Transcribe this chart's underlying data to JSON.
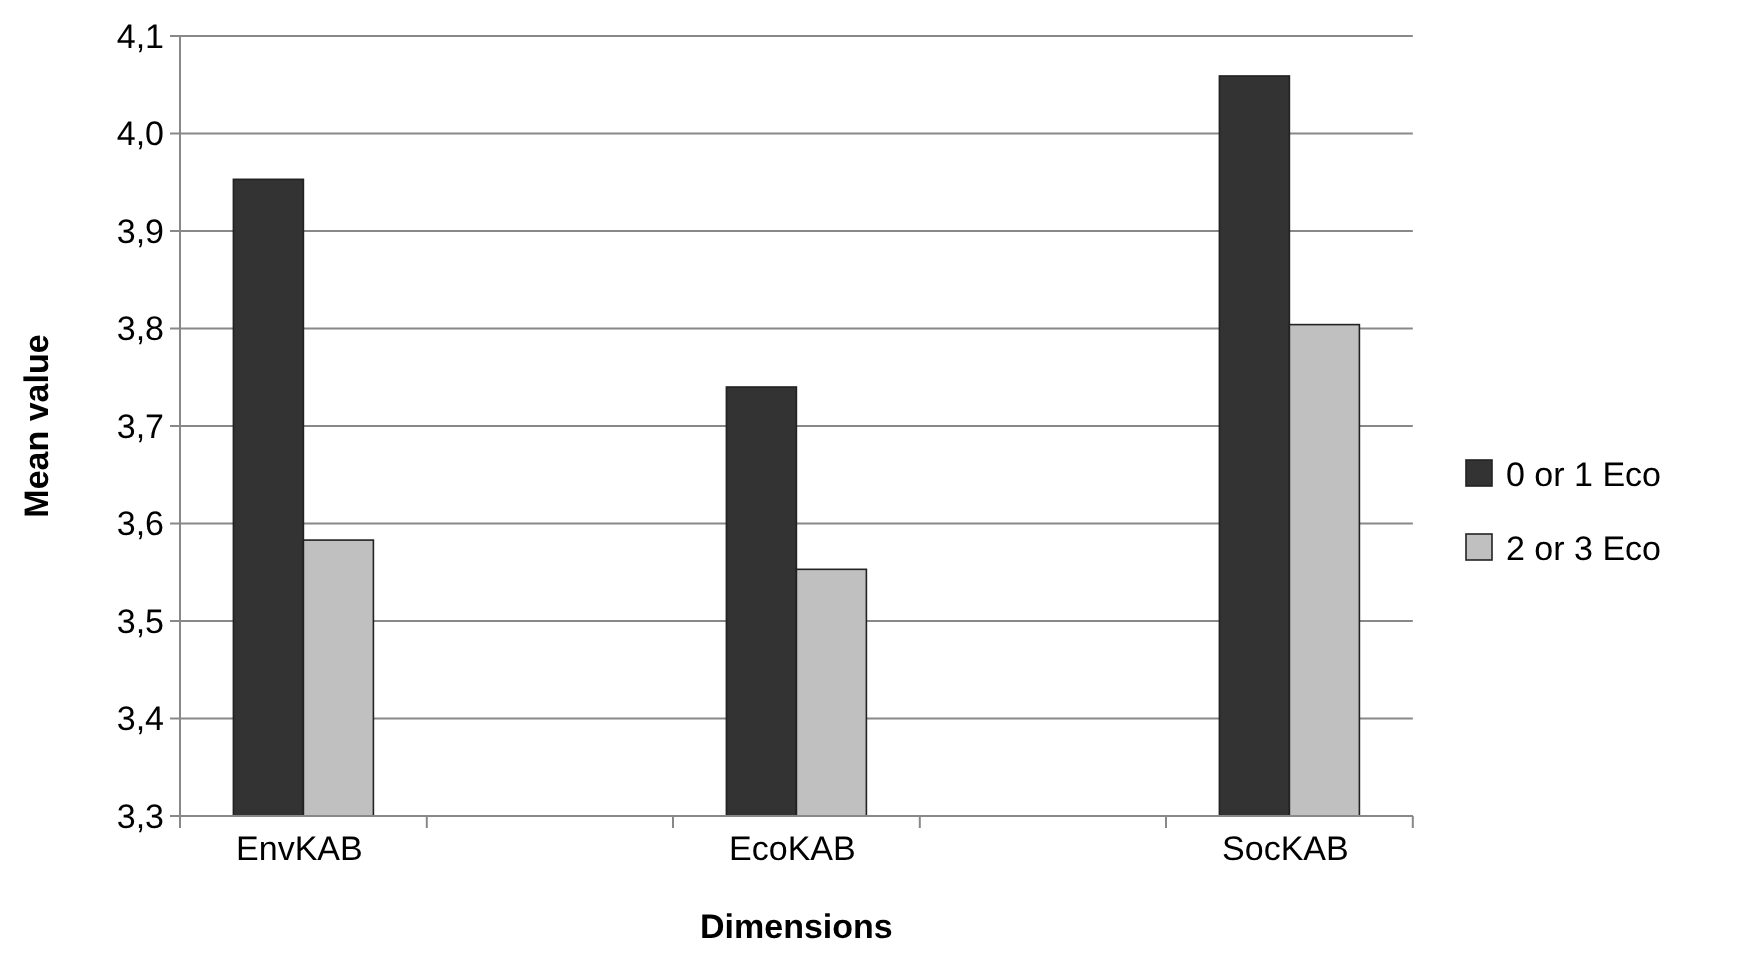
{
  "chart_data": {
    "type": "bar",
    "xlabel": "Dimensions",
    "ylabel": "Mean value",
    "categories": [
      "EnvKAB",
      "EcoKAB",
      "SocKAB"
    ],
    "series": [
      {
        "name": "0 or 1 Eco",
        "color": "#333333",
        "values": [
          3.953,
          3.74,
          4.059
        ]
      },
      {
        "name": "2 or 3 Eco",
        "color": "#c0c0c0",
        "values": [
          3.583,
          3.553,
          3.804
        ]
      }
    ],
    "ylim": [
      3.3,
      4.1
    ],
    "yticks": [
      {
        "value": 3.3,
        "label": "3,3"
      },
      {
        "value": 3.4,
        "label": "3,4"
      },
      {
        "value": 3.5,
        "label": "3,5"
      },
      {
        "value": 3.6,
        "label": "3,6"
      },
      {
        "value": 3.7,
        "label": "3,7"
      },
      {
        "value": 3.8,
        "label": "3,8"
      },
      {
        "value": 3.9,
        "label": "3,9"
      },
      {
        "value": 4.0,
        "label": "4,0"
      },
      {
        "value": 4.1,
        "label": "4,1"
      }
    ],
    "grid": "y",
    "legend": "right"
  }
}
